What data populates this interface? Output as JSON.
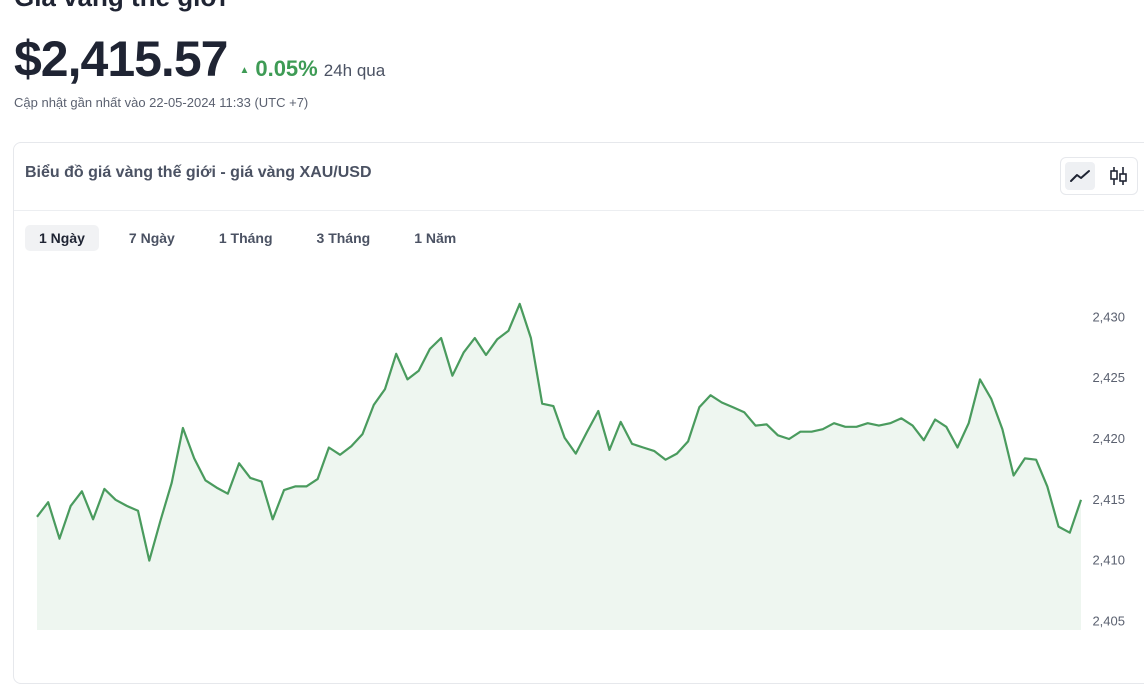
{
  "header": {
    "truncated_title": "Giá vàng thế giới",
    "price": "$2,415.57",
    "change_arrow": "▲",
    "change_percent": "0.05%",
    "change_period": "24h qua",
    "updated": "Cập nhật gần nhất vào 22-05-2024 11:33 (UTC +7)"
  },
  "card": {
    "title": "Biểu đồ giá vàng thế giới - giá vàng XAU/USD",
    "toggle_icons": [
      "line-chart-icon",
      "candlestick-icon"
    ],
    "tabs": [
      {
        "label": "1 Ngày",
        "active": true
      },
      {
        "label": "7 Ngày",
        "active": false
      },
      {
        "label": "1 Tháng",
        "active": false
      },
      {
        "label": "3 Tháng",
        "active": false
      },
      {
        "label": "1 Năm",
        "active": false
      }
    ]
  },
  "colors": {
    "line": "#4a9b5e",
    "fill": "#eef6f0",
    "accent_up": "#3e9b55"
  },
  "chart_data": {
    "type": "area",
    "title": "",
    "xlabel": "",
    "ylabel": "",
    "ylim": [
      2404.3,
      2430.6
    ],
    "yticks": [
      2405,
      2410,
      2415,
      2420,
      2425,
      2430
    ],
    "ytick_labels": [
      "2,405",
      "2,410",
      "2,415",
      "2,420",
      "2,425",
      "2,430"
    ],
    "grid": false,
    "values": [
      2413.6,
      2414.8,
      2411.8,
      2414.5,
      2415.7,
      2413.4,
      2415.9,
      2415.0,
      2414.5,
      2414.1,
      2410.0,
      2413.3,
      2416.4,
      2420.9,
      2418.4,
      2416.6,
      2416.0,
      2415.5,
      2418.0,
      2416.8,
      2416.5,
      2413.4,
      2415.8,
      2416.1,
      2416.1,
      2416.7,
      2419.3,
      2418.7,
      2419.4,
      2420.4,
      2422.8,
      2424.1,
      2427.0,
      2424.9,
      2425.6,
      2427.4,
      2428.3,
      2425.2,
      2427.1,
      2428.3,
      2426.9,
      2428.2,
      2428.9,
      2431.1,
      2428.3,
      2422.9,
      2422.7,
      2420.1,
      2418.8,
      2420.6,
      2422.3,
      2419.1,
      2421.4,
      2419.6,
      2419.3,
      2419.0,
      2418.3,
      2418.8,
      2419.8,
      2422.6,
      2423.6,
      2423.0,
      2422.6,
      2422.2,
      2421.1,
      2421.2,
      2420.3,
      2420.0,
      2420.6,
      2420.6,
      2420.8,
      2421.3,
      2421.0,
      2421.0,
      2421.3,
      2421.1,
      2421.3,
      2421.7,
      2421.1,
      2419.9,
      2421.6,
      2421.0,
      2419.3,
      2421.3,
      2424.9,
      2423.3,
      2420.8,
      2417.0,
      2418.4,
      2418.3,
      2416.1,
      2412.8,
      2412.3,
      2415.0
    ]
  }
}
